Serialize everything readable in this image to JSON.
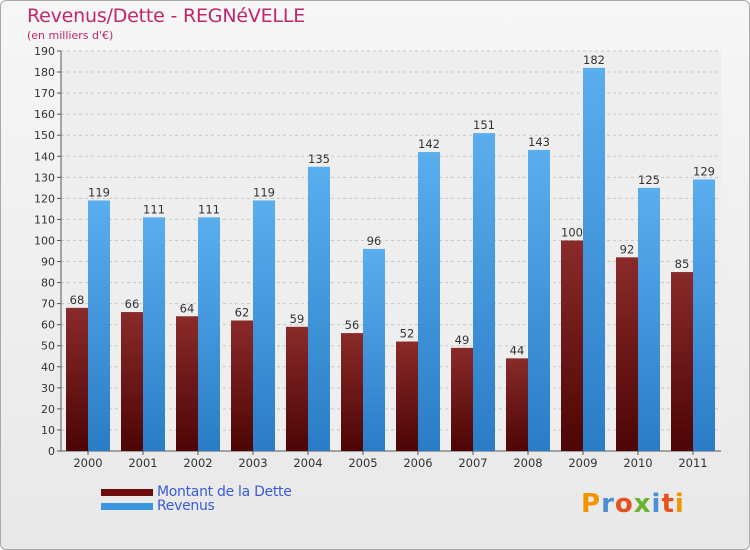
{
  "chart_data": {
    "type": "bar",
    "title": "Revenus/Dette - REGNéVELLE",
    "subtitle": "(en milliers d'€)",
    "categories": [
      "2000",
      "2001",
      "2002",
      "2003",
      "2004",
      "2005",
      "2006",
      "2007",
      "2008",
      "2009",
      "2010",
      "2011"
    ],
    "series": [
      {
        "name": "Montant de la Dette",
        "color": "#6b0c0c",
        "values": [
          68,
          66,
          64,
          62,
          59,
          56,
          52,
          49,
          44,
          100,
          92,
          85
        ]
      },
      {
        "name": "Revenus",
        "color": "#3a96e0",
        "values": [
          119,
          111,
          111,
          119,
          135,
          96,
          142,
          151,
          143,
          182,
          125,
          129
        ]
      }
    ],
    "ylim": [
      0,
      190
    ],
    "ytick_step": 10,
    "grid": true,
    "legend_position": "bottom-left"
  },
  "logo": {
    "text": "Proxiti",
    "colors": [
      "#f29400",
      "#4a8fd6",
      "#e4531f",
      "#6bb32e",
      "#4a8fd6",
      "#e4531f",
      "#f29400"
    ]
  }
}
